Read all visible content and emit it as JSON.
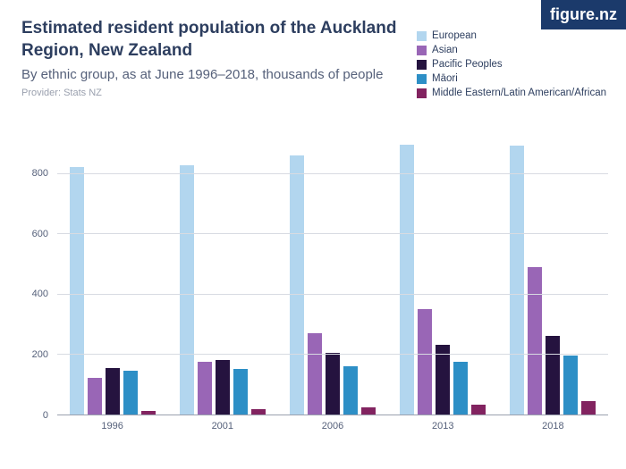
{
  "logo": {
    "text": "figure.nz",
    "bg": "#1b3a6b"
  },
  "title": {
    "text": "Estimated resident population of the Auckland Region, New Zealand",
    "color": "#2d3e5f",
    "fontsize": 19
  },
  "subtitle": {
    "text": "By ethnic group, as at June 1996–2018, thousands of people",
    "color": "#55607a",
    "fontsize": 15
  },
  "provider": {
    "text": "Provider: Stats NZ",
    "color": "#9aa0ae",
    "fontsize": 11
  },
  "legend_text_color": "#2d3e5f",
  "series": [
    {
      "label": "European",
      "color": "#b2d6ef"
    },
    {
      "label": "Asian",
      "color": "#9966b6"
    },
    {
      "label": "Pacific Peoples",
      "color": "#25133f"
    },
    {
      "label": "Māori",
      "color": "#2d8fc6"
    },
    {
      "label": "Middle Eastern/Latin American/African",
      "color": "#822360"
    }
  ],
  "categories": [
    "1996",
    "2001",
    "2006",
    "2013",
    "2018"
  ],
  "values": [
    [
      820,
      120,
      155,
      145,
      12
    ],
    [
      825,
      175,
      180,
      150,
      18
    ],
    [
      860,
      270,
      205,
      160,
      25
    ],
    [
      895,
      350,
      230,
      175,
      32
    ],
    [
      890,
      490,
      260,
      195,
      45
    ]
  ],
  "y_axis": {
    "min": 0,
    "max": 900,
    "ticks": [
      0,
      200,
      400,
      600,
      800
    ],
    "tick_color": "#55607a",
    "grid_color": "#d8dbe2",
    "axis_line_color": "#9aa0ae"
  },
  "x_tick_color": "#55607a",
  "background": "#ffffff"
}
